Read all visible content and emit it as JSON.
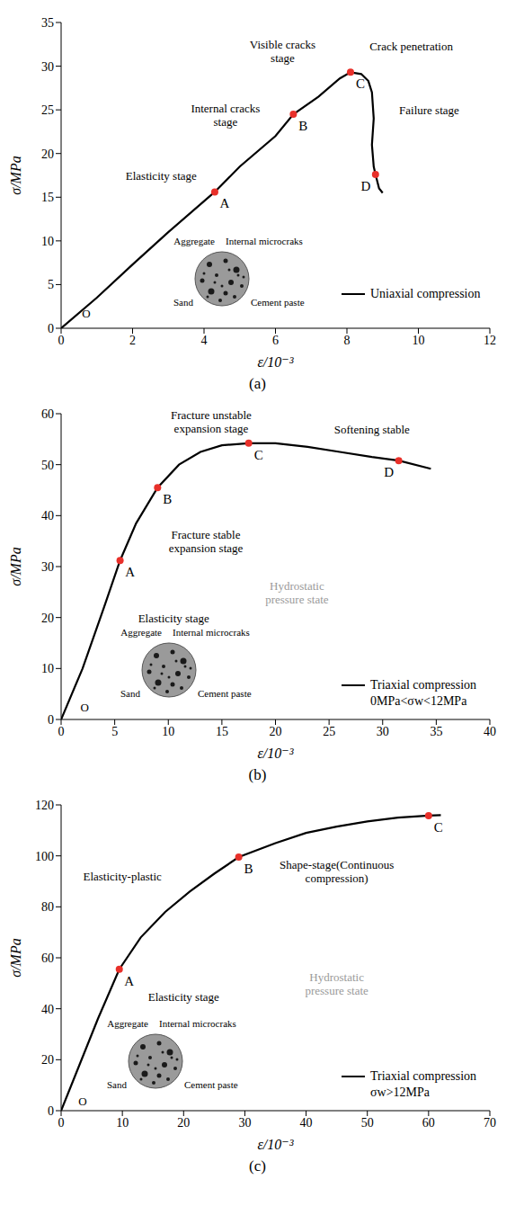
{
  "chart_data": [
    {
      "type": "line",
      "panel_label": "(a)",
      "xlabel": "ε/10⁻³",
      "ylabel": "σ/MPa",
      "xlim": [
        0,
        12
      ],
      "ylim": [
        0,
        35
      ],
      "xticks": [
        0,
        2,
        4,
        6,
        8,
        10,
        12
      ],
      "yticks": [
        0,
        5,
        10,
        15,
        20,
        25,
        30,
        35
      ],
      "legend": "lower right",
      "series": [
        {
          "name": "Uniaxial compression",
          "color": "#000000",
          "x": [
            0,
            1,
            2,
            3,
            4.3,
            5,
            6,
            6.5,
            7.2,
            7.8,
            8.1,
            8.4,
            8.6,
            8.7,
            8.75,
            8.7,
            8.75,
            8.8,
            8.9,
            9.0
          ],
          "values": [
            0,
            3.5,
            7.3,
            11,
            15.6,
            18.5,
            22,
            24.5,
            26.5,
            28.6,
            29.3,
            29.1,
            28.3,
            27,
            24,
            21,
            18.5,
            17.6,
            16,
            15.5
          ]
        }
      ],
      "points": {
        "color": "#e8302a",
        "labels": [
          "A",
          "B",
          "C",
          "D"
        ],
        "x": [
          4.3,
          6.5,
          8.1,
          8.8
        ],
        "y": [
          15.6,
          24.5,
          29.3,
          17.6
        ]
      },
      "annotations": [
        {
          "text": "O",
          "x": 0.7,
          "y": 1.8
        },
        {
          "text": "Elasticity stage",
          "x": 2.8,
          "y": 17.5
        },
        {
          "text": "Internal cracks stage",
          "x": 4.6,
          "y": 24.5
        },
        {
          "text": "Visible cracks stage",
          "x": 6.2,
          "y": 31.8
        },
        {
          "text": "Crack penetration",
          "x": 9.8,
          "y": 32.3
        },
        {
          "text": "Failure stage",
          "x": 10.3,
          "y": 25
        }
      ],
      "inset_labels": [
        "Aggregate",
        "Internal microcraks",
        "Sand",
        "Cement paste"
      ]
    },
    {
      "type": "line",
      "panel_label": "(b)",
      "xlabel": "ε/10⁻³",
      "ylabel": "σ/MPa",
      "xlim": [
        0,
        40
      ],
      "ylim": [
        0,
        60
      ],
      "xticks": [
        0,
        5,
        10,
        15,
        20,
        25,
        30,
        35,
        40
      ],
      "yticks": [
        0,
        10,
        20,
        30,
        40,
        50,
        60
      ],
      "legend": "lower right",
      "condition": "0MPa<σw<12MPa",
      "series": [
        {
          "name": "Triaxial compression",
          "color": "#000000",
          "x": [
            0,
            2,
            4,
            5.5,
            7,
            9,
            11,
            13,
            15,
            17.5,
            20,
            23,
            26,
            29,
            31.5,
            34.5
          ],
          "values": [
            0,
            10,
            22,
            31.2,
            38.5,
            45.5,
            50,
            52.5,
            53.8,
            54.2,
            54.2,
            53.5,
            52.5,
            51.5,
            50.8,
            49.2
          ]
        }
      ],
      "points": {
        "color": "#e8302a",
        "labels": [
          "A",
          "B",
          "C",
          "D"
        ],
        "x": [
          5.5,
          9,
          17.5,
          31.5
        ],
        "y": [
          31.2,
          45.5,
          54.2,
          50.8
        ]
      },
      "annotations": [
        {
          "text": "O",
          "x": 2.2,
          "y": 2.5
        },
        {
          "text": "Elasticity stage",
          "x": 10.5,
          "y": 20
        },
        {
          "text": "Fracture stable expansion stage",
          "x": 13.5,
          "y": 35
        },
        {
          "text": "Fracture unstable expansion stage",
          "x": 14,
          "y": 58.5
        },
        {
          "text": "Softening stable",
          "x": 29,
          "y": 57
        },
        {
          "text": "Hydrostatic pressure state",
          "x": 22,
          "y": 25
        }
      ],
      "inset_labels": [
        "Aggregate",
        "Internal microcraks",
        "Sand",
        "Cement paste"
      ]
    },
    {
      "type": "line",
      "panel_label": "(c)",
      "xlabel": "ε/10⁻³",
      "ylabel": "σ/MPa",
      "xlim": [
        0,
        70
      ],
      "ylim": [
        0,
        120
      ],
      "xticks": [
        0,
        10,
        20,
        30,
        40,
        50,
        60,
        70
      ],
      "yticks": [
        0,
        20,
        40,
        60,
        80,
        100,
        120
      ],
      "legend": "lower right",
      "condition": "σw>12MPa",
      "series": [
        {
          "name": "Triaxial compression",
          "color": "#000000",
          "x": [
            0,
            3,
            6,
            9.5,
            13,
            17,
            21,
            25,
            29,
            35,
            40,
            45,
            50,
            55,
            60,
            62
          ],
          "values": [
            0,
            18,
            36,
            55.5,
            68,
            78,
            86,
            93,
            99.5,
            105,
            109,
            111.5,
            113.5,
            115,
            115.8,
            116
          ]
        }
      ],
      "points": {
        "color": "#e8302a",
        "labels": [
          "A",
          "B",
          "C"
        ],
        "x": [
          9.5,
          29,
          60
        ],
        "y": [
          55.5,
          99.5,
          115.8
        ]
      },
      "annotations": [
        {
          "text": "O",
          "x": 3.5,
          "y": 4
        },
        {
          "text": "Elasticity stage",
          "x": 20,
          "y": 45
        },
        {
          "text": "Elasticity-plastic",
          "x": 10,
          "y": 92
        },
        {
          "text": "Shape-stage(Continuous compression)",
          "x": 45,
          "y": 94
        },
        {
          "text": "Hydrostatic pressure state",
          "x": 45,
          "y": 50
        }
      ],
      "inset_labels": [
        "Aggregate",
        "Internal microcraks",
        "Sand",
        "Cement paste"
      ]
    }
  ]
}
